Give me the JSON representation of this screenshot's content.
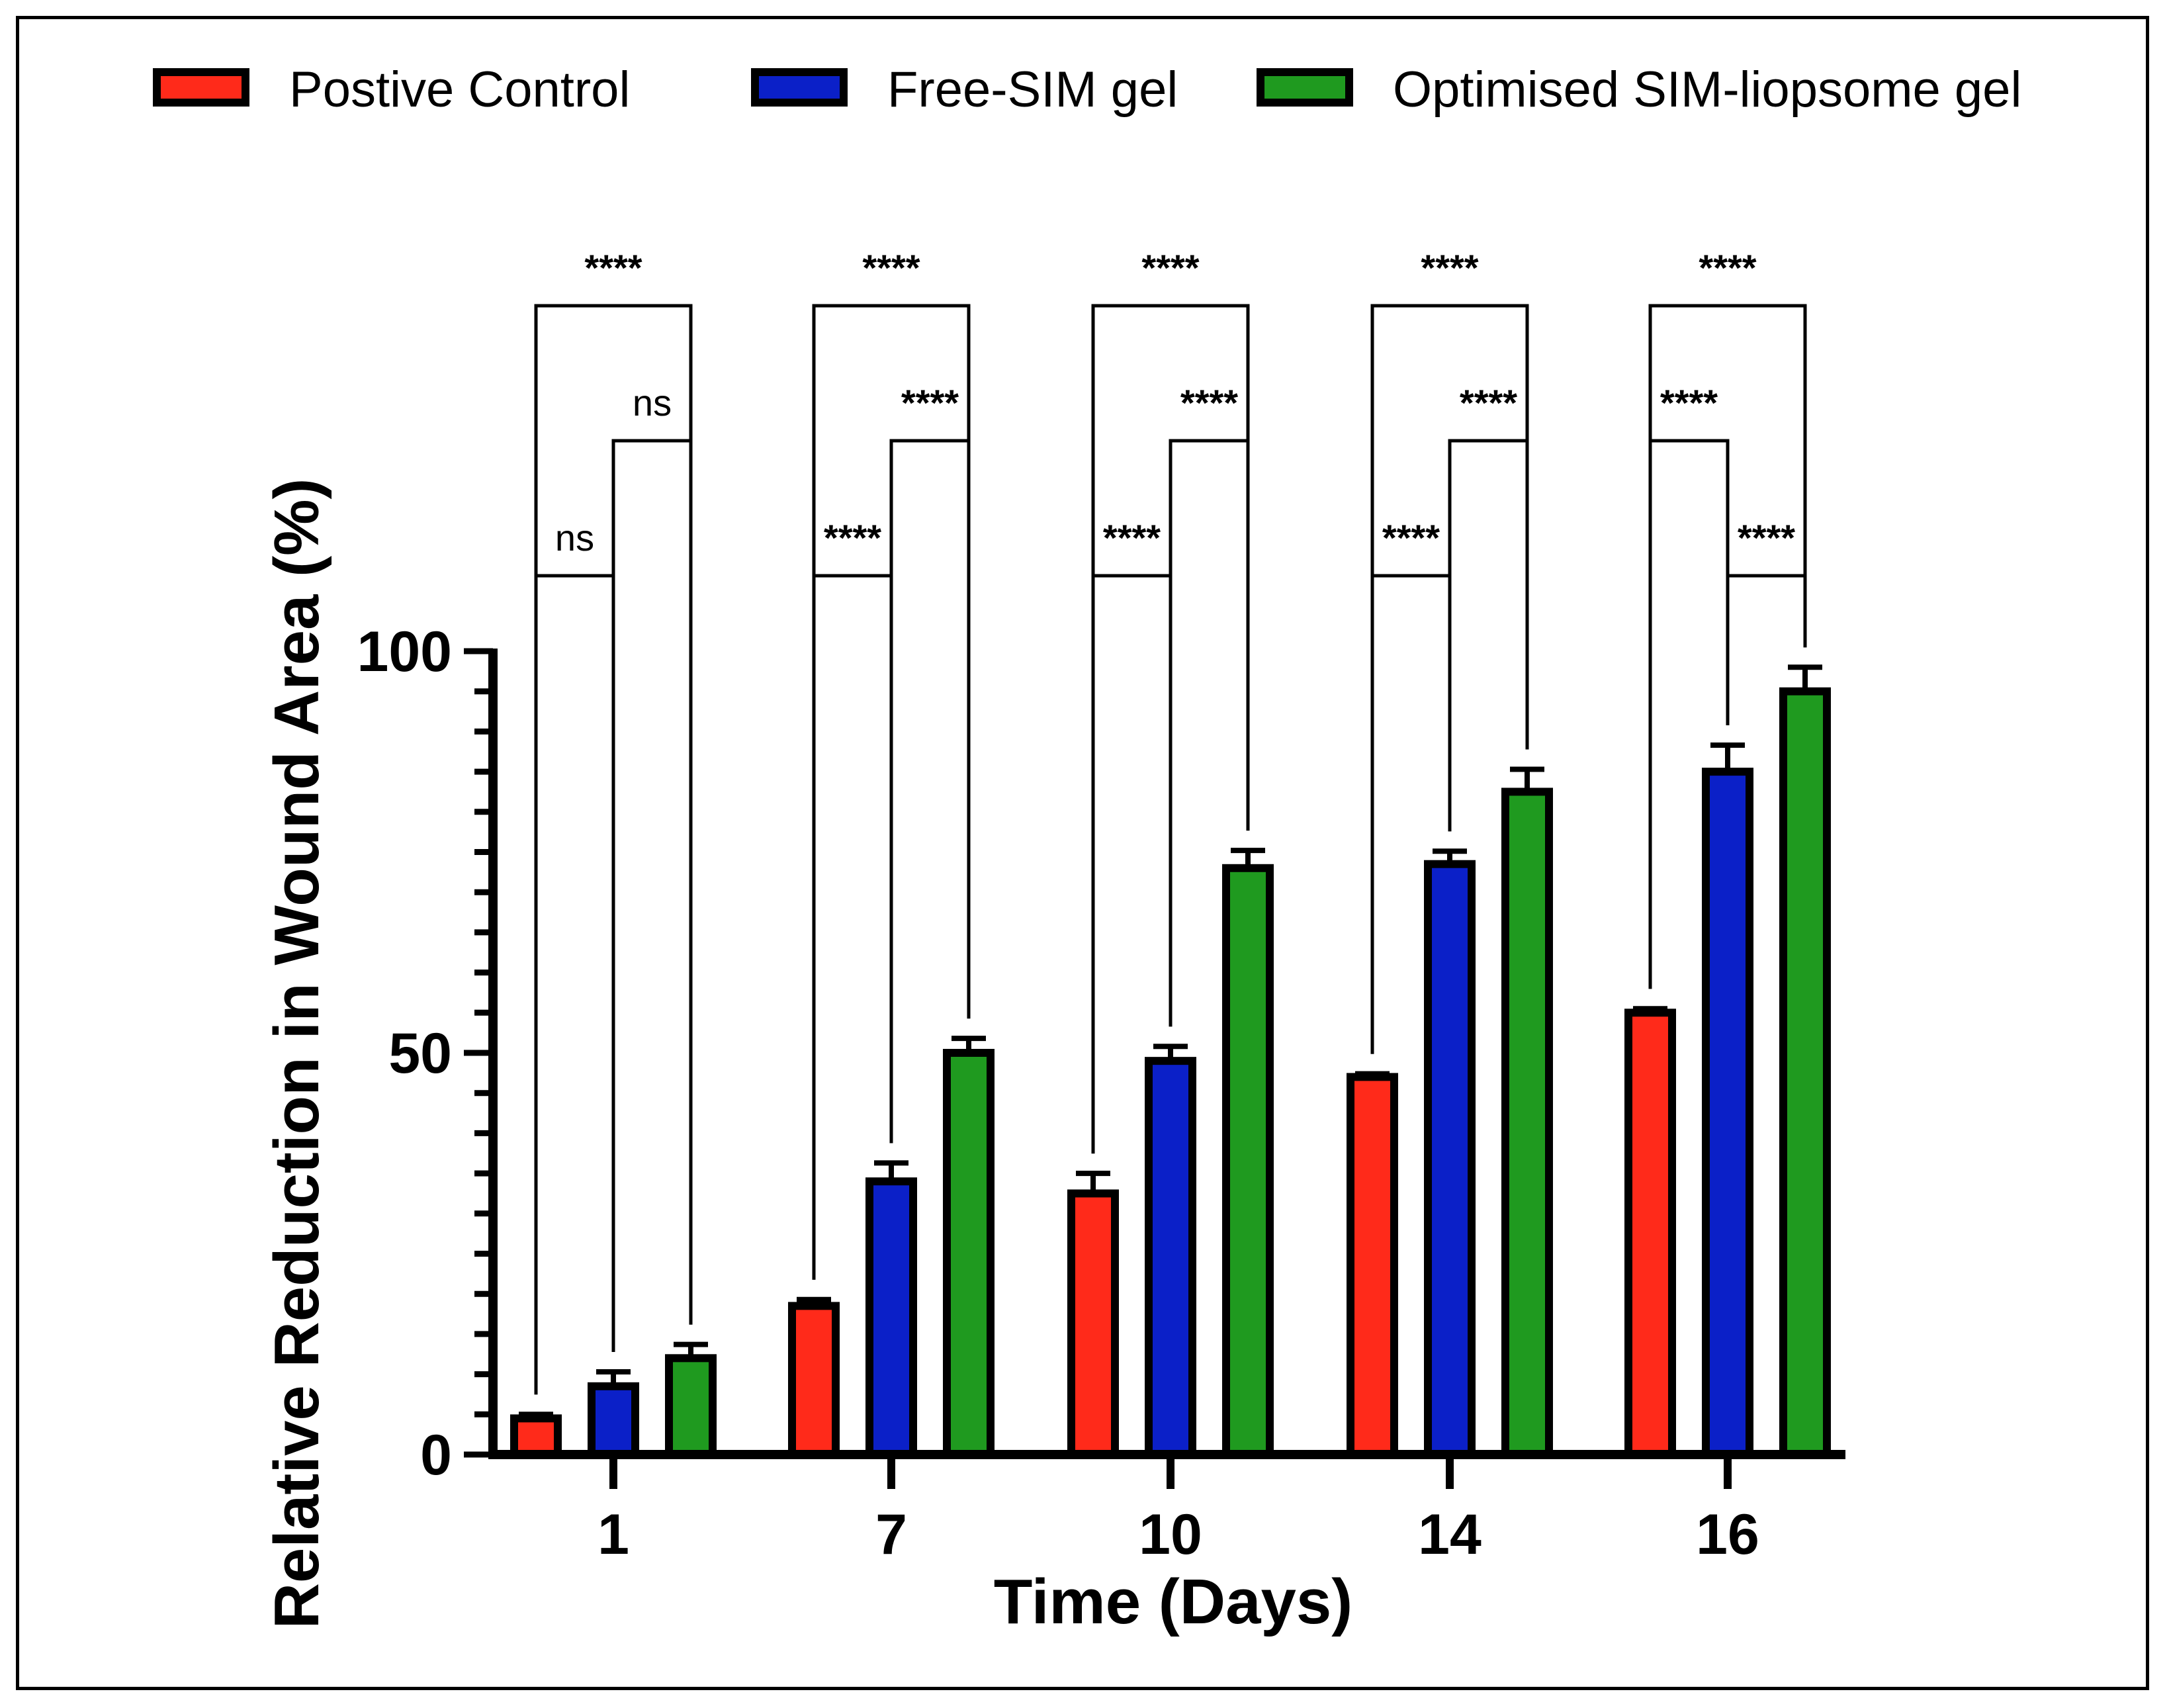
{
  "chart_data": {
    "type": "bar",
    "title": "",
    "xlabel": "Time (Days)",
    "ylabel": "Relative Reduction in Wound Area (%)",
    "ylim": [
      0,
      100
    ],
    "yticks": [
      "0",
      "50",
      "100"
    ],
    "categories": [
      "1",
      "7",
      "10",
      "14",
      "16"
    ],
    "legend_position": "top",
    "series": [
      {
        "name": "Postive Control",
        "color": "#ff2a1a",
        "values": [
          4.5,
          18.5,
          32.5,
          47,
          55
        ],
        "errors": [
          0.5,
          0.8,
          2.5,
          0.4,
          0.5
        ]
      },
      {
        "name": "Free-SIM gel",
        "color": "#0b20c8",
        "values": [
          8.5,
          34,
          49,
          73.5,
          85
        ],
        "errors": [
          1.8,
          2.3,
          1.8,
          1.6,
          3.3
        ]
      },
      {
        "name": "Optimised SIM-liopsome gel",
        "color": "#1f9a1f",
        "values": [
          12,
          50,
          73,
          82.5,
          95
        ],
        "errors": [
          1.7,
          1.8,
          2.2,
          2.8,
          3.0
        ]
      }
    ],
    "significance": [
      {
        "group": "1",
        "comparisons": [
          {
            "from": 0,
            "to": 2,
            "label": "****"
          },
          {
            "from": 1,
            "to": 2,
            "label": "ns"
          },
          {
            "from": 0,
            "to": 1,
            "label": "ns"
          }
        ]
      },
      {
        "group": "7",
        "comparisons": [
          {
            "from": 0,
            "to": 2,
            "label": "****"
          },
          {
            "from": 1,
            "to": 2,
            "label": "****"
          },
          {
            "from": 0,
            "to": 1,
            "label": "****"
          }
        ]
      },
      {
        "group": "10",
        "comparisons": [
          {
            "from": 0,
            "to": 2,
            "label": "****"
          },
          {
            "from": 1,
            "to": 2,
            "label": "****"
          },
          {
            "from": 0,
            "to": 1,
            "label": "****"
          }
        ]
      },
      {
        "group": "14",
        "comparisons": [
          {
            "from": 0,
            "to": 2,
            "label": "****"
          },
          {
            "from": 1,
            "to": 2,
            "label": "****"
          },
          {
            "from": 0,
            "to": 1,
            "label": "****"
          }
        ]
      },
      {
        "group": "16",
        "comparisons": [
          {
            "from": 0,
            "to": 2,
            "label": "****"
          },
          {
            "from": 0,
            "to": 1,
            "label": "****"
          },
          {
            "from": 1,
            "to": 2,
            "label": "****"
          }
        ]
      }
    ]
  }
}
